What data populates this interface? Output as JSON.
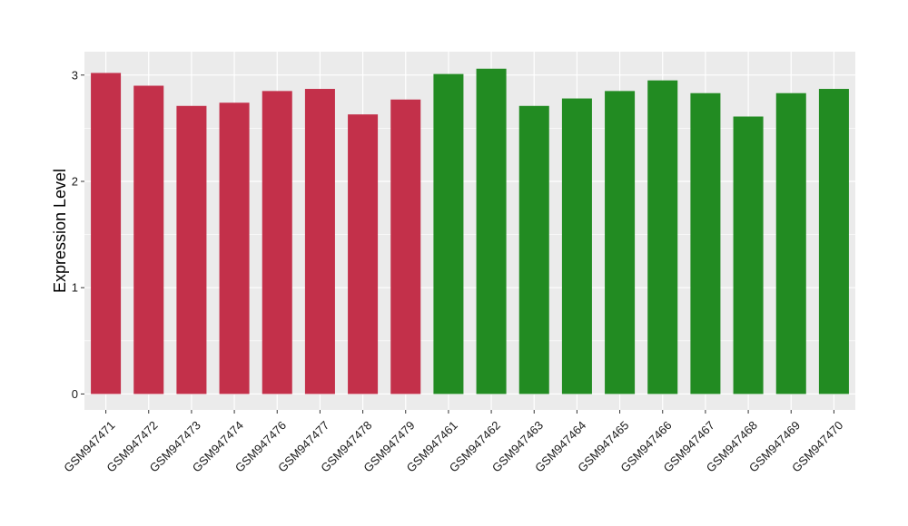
{
  "chart_data": {
    "type": "bar",
    "ylabel": "Expression Level",
    "xlabel": "",
    "title": "",
    "ylim": [
      -0.15,
      3.22
    ],
    "yticks": [
      0,
      1,
      2,
      3
    ],
    "yticklabels": [
      "0",
      "1",
      "2",
      "3"
    ],
    "grid": true,
    "legend": "none",
    "panel_background": "#ebebeb",
    "grid_color": "#ffffff",
    "categories": [
      "GSM947471",
      "GSM947472",
      "GSM947473",
      "GSM947474",
      "GSM947476",
      "GSM947477",
      "GSM947478",
      "GSM947479",
      "GSM947461",
      "GSM947462",
      "GSM947463",
      "GSM947464",
      "GSM947465",
      "GSM947466",
      "GSM947467",
      "GSM947468",
      "GSM947469",
      "GSM947470"
    ],
    "values": [
      3.02,
      2.9,
      2.71,
      2.74,
      2.85,
      2.87,
      2.63,
      2.77,
      3.01,
      3.06,
      2.71,
      2.78,
      2.85,
      2.95,
      2.83,
      2.61,
      2.83,
      2.87
    ],
    "bar_colors": [
      "#c3304a",
      "#c3304a",
      "#c3304a",
      "#c3304a",
      "#c3304a",
      "#c3304a",
      "#c3304a",
      "#c3304a",
      "#228b22",
      "#228b22",
      "#228b22",
      "#228b22",
      "#228b22",
      "#228b22",
      "#228b22",
      "#228b22",
      "#228b22",
      "#228b22"
    ]
  }
}
